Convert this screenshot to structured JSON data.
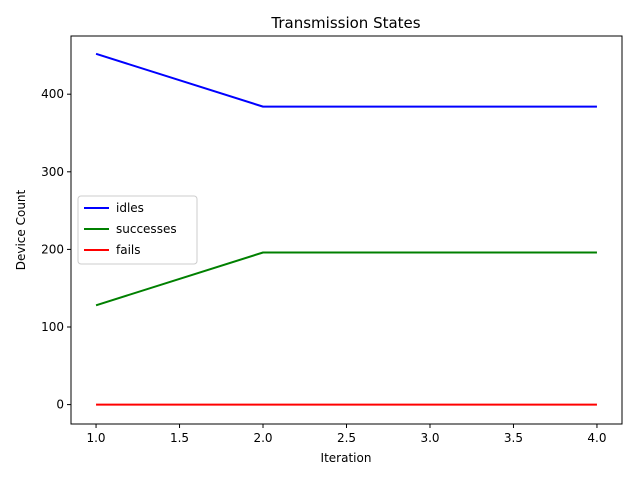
{
  "chart_data": {
    "type": "line",
    "title": "Transmission States",
    "xlabel": "Iteration",
    "ylabel": "Device Count",
    "x": [
      1.0,
      2.0,
      3.0,
      4.0
    ],
    "xlim": [
      0.85,
      4.15
    ],
    "ylim": [
      -25,
      475
    ],
    "xticks": [
      "1.0",
      "1.5",
      "2.0",
      "2.5",
      "3.0",
      "3.5",
      "4.0"
    ],
    "yticks": [
      "0",
      "100",
      "200",
      "300",
      "400"
    ],
    "grid": false,
    "legend_position": "center-left",
    "series": [
      {
        "name": "idles",
        "color": "#0000ff",
        "values": [
          452,
          384,
          384,
          384
        ]
      },
      {
        "name": "successes",
        "color": "#008000",
        "values": [
          128,
          196,
          196,
          196
        ]
      },
      {
        "name": "fails",
        "color": "#ff0000",
        "values": [
          0,
          0,
          0,
          0
        ]
      }
    ]
  }
}
